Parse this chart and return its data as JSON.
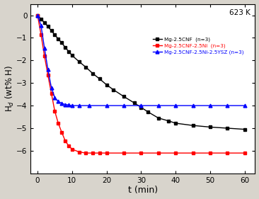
{
  "title_annotation": "623 K",
  "xlabel": "t (min)",
  "ylabel": "H$_d$ (wt% H)",
  "xlim": [
    -2,
    63
  ],
  "ylim": [
    -7.0,
    0.5
  ],
  "yticks": [
    0,
    -1,
    -2,
    -3,
    -4,
    -5,
    -6
  ],
  "xticks": [
    0,
    10,
    20,
    30,
    40,
    50,
    60
  ],
  "fig_background_color": "#d8d4cc",
  "ax_background_color": "#ffffff",
  "legend_entries": [
    "Mg-2.5CNF  (n=3)",
    "Mg-2.5CNF-2.5Ni  (n=3)",
    "Mg-2.5CNF-2.5Ni-2.5YSZ (n=3)"
  ],
  "series_colors": [
    "black",
    "red",
    "blue"
  ],
  "black_x": [
    0,
    1,
    2,
    3,
    4,
    5,
    6,
    7,
    8,
    9,
    10,
    12,
    14,
    16,
    18,
    20,
    22,
    25,
    28,
    30,
    32,
    35,
    38,
    40,
    45,
    50,
    55,
    60
  ],
  "black_y": [
    0,
    -0.18,
    -0.32,
    -0.5,
    -0.68,
    -0.87,
    -1.05,
    -1.22,
    -1.42,
    -1.6,
    -1.78,
    -2.05,
    -2.3,
    -2.58,
    -2.82,
    -3.08,
    -3.3,
    -3.6,
    -3.88,
    -4.08,
    -4.28,
    -4.55,
    -4.68,
    -4.78,
    -4.88,
    -4.95,
    -5.0,
    -5.05
  ],
  "red_x": [
    0,
    1,
    2,
    3,
    4,
    5,
    6,
    7,
    8,
    9,
    10,
    12,
    14,
    16,
    18,
    20,
    25,
    30,
    35,
    40,
    45,
    50,
    55,
    60
  ],
  "red_y": [
    0,
    -0.85,
    -1.8,
    -2.65,
    -3.45,
    -4.25,
    -4.78,
    -5.18,
    -5.55,
    -5.78,
    -5.93,
    -6.05,
    -6.1,
    -6.1,
    -6.1,
    -6.1,
    -6.1,
    -6.1,
    -6.1,
    -6.1,
    -6.1,
    -6.1,
    -6.1,
    -6.1
  ],
  "blue_x": [
    0,
    1,
    2,
    3,
    4,
    5,
    6,
    7,
    8,
    9,
    10,
    12,
    15,
    20,
    25,
    30,
    35,
    40,
    45,
    50,
    55,
    60
  ],
  "blue_y": [
    0,
    -0.45,
    -1.45,
    -2.4,
    -3.2,
    -3.65,
    -3.82,
    -3.9,
    -3.95,
    -3.97,
    -4.0,
    -4.0,
    -4.0,
    -4.0,
    -4.0,
    -4.0,
    -4.0,
    -4.0,
    -4.0,
    -4.0,
    -4.0,
    -4.0
  ]
}
